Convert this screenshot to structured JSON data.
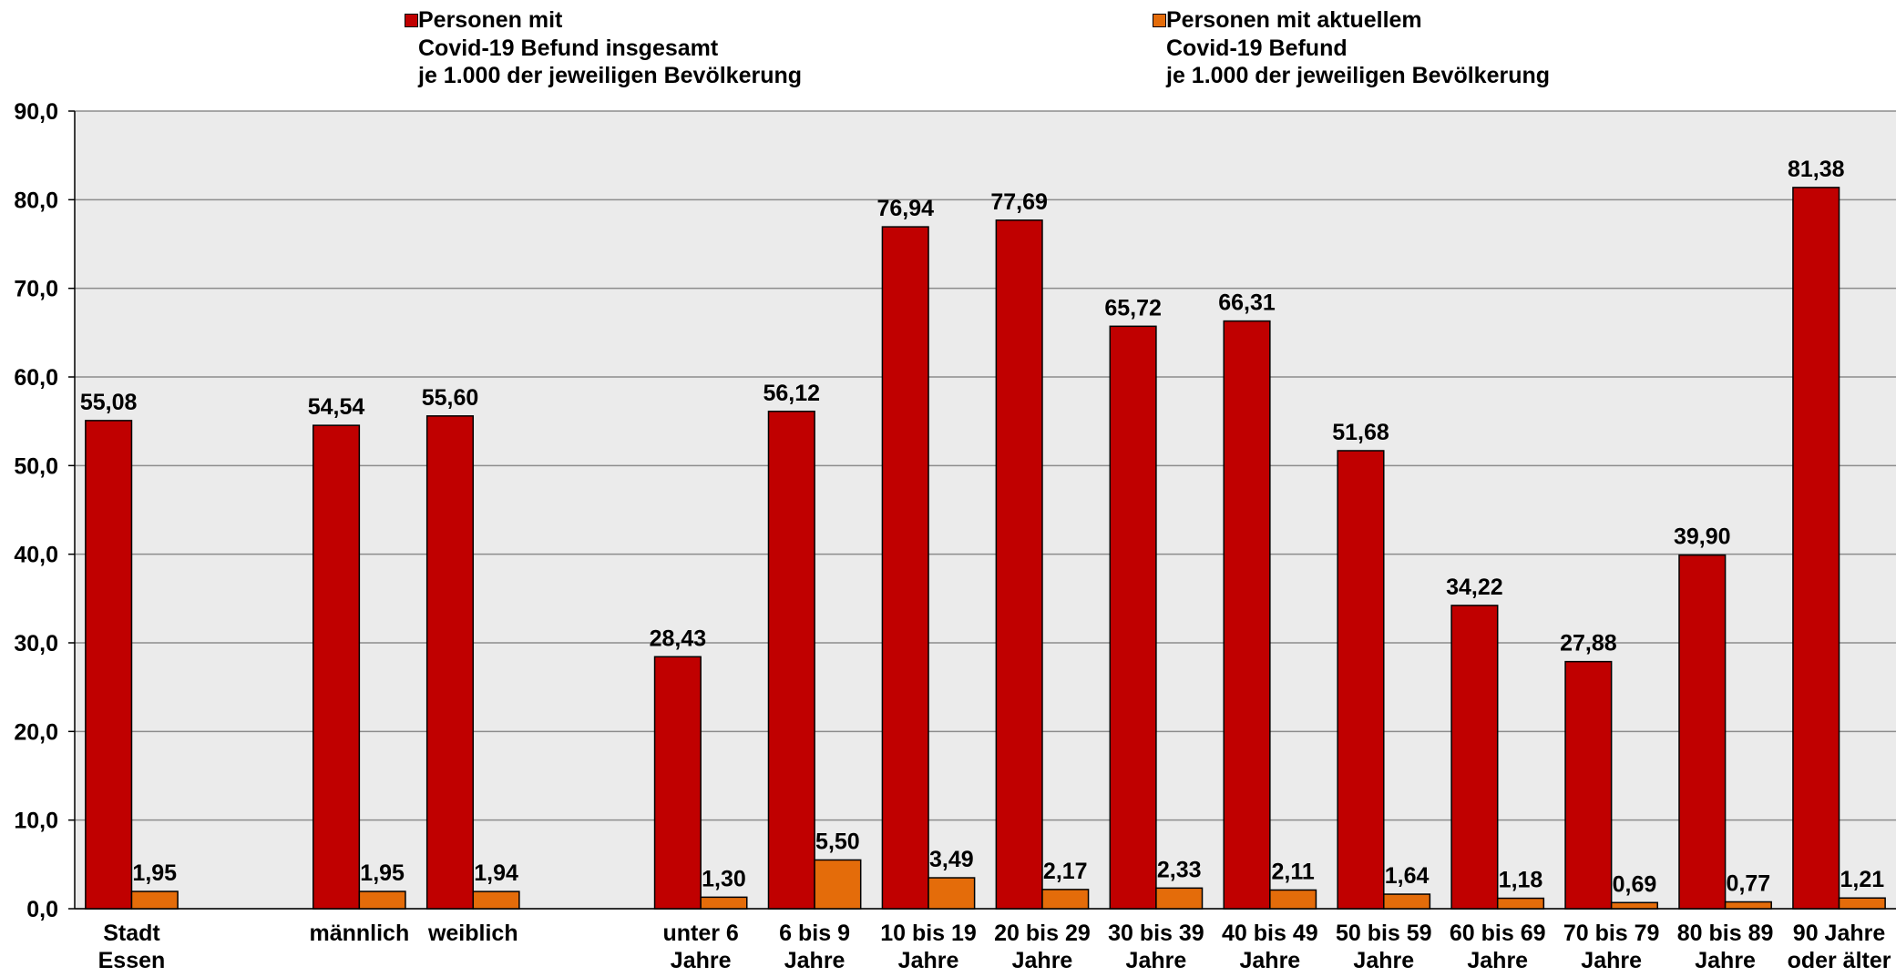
{
  "chart_data": {
    "type": "bar",
    "categories": [
      "Stadt\nEssen",
      null,
      "männlich",
      "weiblich",
      null,
      "unter 6\nJahre",
      "6 bis 9\nJahre",
      "10 bis 19\nJahre",
      "20 bis 29\nJahre",
      "30 bis 39\nJahre",
      "40 bis 49\nJahre",
      "50 bis 59\nJahre",
      "60 bis 69\nJahre",
      "70 bis 79\nJahre",
      "80 bis 89\nJahre",
      "90 Jahre\noder älter"
    ],
    "series": [
      {
        "name": "Personen mit\nCovid-19 Befund insgesamt\nje 1.000 der jeweiligen Bevölkerung",
        "color": "#c00000",
        "values": [
          55.08,
          null,
          54.54,
          55.6,
          null,
          28.43,
          56.12,
          76.94,
          77.69,
          65.72,
          66.31,
          51.68,
          34.22,
          27.88,
          39.9,
          81.38
        ],
        "value_labels": [
          "55,08",
          null,
          "54,54",
          "55,60",
          null,
          "28,43",
          "56,12",
          "76,94",
          "77,69",
          "65,72",
          "66,31",
          "51,68",
          "34,22",
          "27,88",
          "39,90",
          "81,38"
        ]
      },
      {
        "name": "Personen mit aktuellem\nCovid-19 Befund\nje 1.000 der jeweiligen Bevölkerung",
        "color": "#e46c0a",
        "values": [
          1.95,
          null,
          1.95,
          1.94,
          null,
          1.3,
          5.5,
          3.49,
          2.17,
          2.33,
          2.11,
          1.64,
          1.18,
          0.69,
          0.77,
          1.21
        ],
        "value_labels": [
          "1,95",
          null,
          "1,95",
          "1,94",
          null,
          "1,30",
          "5,50",
          "3,49",
          "2,17",
          "2,33",
          "2,11",
          "1,64",
          "1,18",
          "0,69",
          "0,77",
          "1,21"
        ]
      }
    ],
    "ylim": [
      0,
      90
    ],
    "yticks": [
      {
        "value": 0,
        "label": "0,0"
      },
      {
        "value": 10,
        "label": "10,0"
      },
      {
        "value": 20,
        "label": "20,0"
      },
      {
        "value": 30,
        "label": "30,0"
      },
      {
        "value": 40,
        "label": "40,0"
      },
      {
        "value": 50,
        "label": "50,0"
      },
      {
        "value": 60,
        "label": "60,0"
      },
      {
        "value": 70,
        "label": "70,0"
      },
      {
        "value": 80,
        "label": "80,0"
      },
      {
        "value": 90,
        "label": "90,0"
      }
    ],
    "grid": true
  }
}
